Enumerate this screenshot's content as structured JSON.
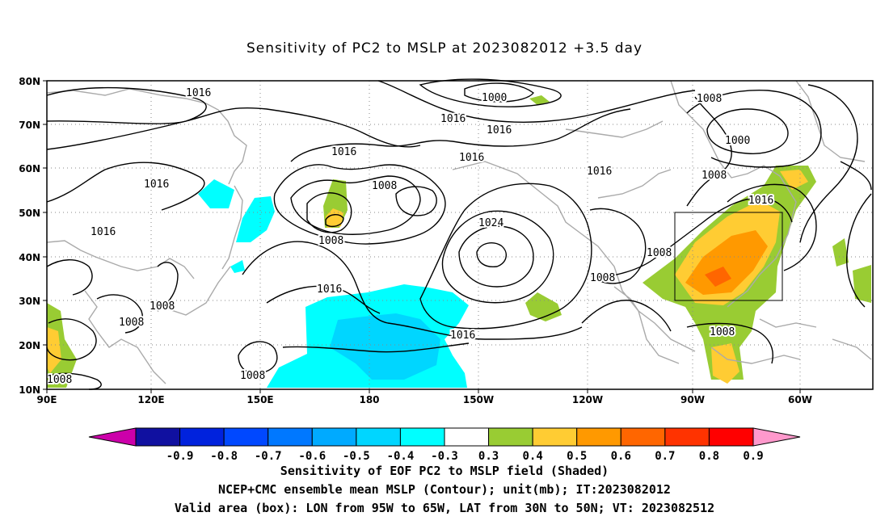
{
  "title": "Sensitivity of PC2 to MSLP at 2023082012 +3.5 day",
  "lat_labels": [
    "80N",
    "70N",
    "60N",
    "50N",
    "40N",
    "30N",
    "20N",
    "10N"
  ],
  "lon_labels": [
    "90E",
    "120E",
    "150E",
    "180",
    "150W",
    "120W",
    "90W",
    "60W"
  ],
  "contour_labels": [
    "1016",
    "1016",
    "1016",
    "1016",
    "1016",
    "1016",
    "1016",
    "1016",
    "1016",
    "1016",
    "1000",
    "1000",
    "1008",
    "1008",
    "1008",
    "1008",
    "1008",
    "1008",
    "1008",
    "1008",
    "1008",
    "1008",
    "1024"
  ],
  "colorbar": {
    "labels": [
      "-0.9",
      "-0.8",
      "-0.7",
      "-0.6",
      "-0.5",
      "-0.4",
      "-0.3",
      "0.3",
      "0.4",
      "0.5",
      "0.6",
      "0.7",
      "0.8",
      "0.9"
    ],
    "colors": [
      "#cc00aa",
      "#1010a0",
      "#0022dd",
      "#0048ff",
      "#0078ff",
      "#00aaff",
      "#00d6ff",
      "#00ffff",
      "#ffffff",
      "#99cc33",
      "#ffcc33",
      "#ff9900",
      "#ff6600",
      "#ff3300",
      "#ff0000",
      "#ff99cc"
    ]
  },
  "valid_box": {
    "lon_west": "95W",
    "lon_east": "65W",
    "lat_south": "30N",
    "lat_north": "50N"
  },
  "captions": {
    "line1": "Sensitivity of EOF PC2 to MSLP field (Shaded)",
    "line2": "NCEP+CMC ensemble mean MSLP (Contour); unit(mb); IT:2023082012",
    "line3": "Valid area (box): LON from 95W to 65W, LAT from 30N to 50N; VT: 2023082512"
  }
}
